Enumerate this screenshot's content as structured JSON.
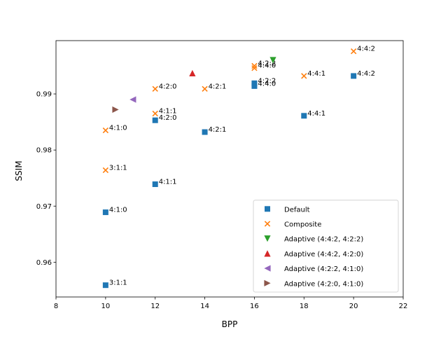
{
  "chart_data": {
    "type": "scatter",
    "title": "",
    "xlabel": "BPP",
    "ylabel": "SSIM",
    "xlim": [
      8,
      22
    ],
    "ylim": [
      0.9538,
      0.9995
    ],
    "xticks": [
      8,
      10,
      12,
      14,
      16,
      18,
      20,
      22
    ],
    "yticks": [
      0.96,
      0.97,
      0.98,
      0.99
    ],
    "xtick_labels": [
      "8",
      "10",
      "12",
      "14",
      "16",
      "18",
      "20",
      "22"
    ],
    "ytick_labels": [
      "0.96",
      "0.97",
      "0.98",
      "0.99"
    ],
    "grid": false,
    "legend_position": "lower-right",
    "series": [
      {
        "name": "Default",
        "marker": "square",
        "color": "#1f77b4",
        "points": [
          {
            "x": 10,
            "y": 0.9559,
            "label": "3:1:1"
          },
          {
            "x": 10,
            "y": 0.9689,
            "label": "4:1:0"
          },
          {
            "x": 12,
            "y": 0.9739,
            "label": "4:1:1"
          },
          {
            "x": 12,
            "y": 0.9853,
            "label": "4:2:0"
          },
          {
            "x": 14,
            "y": 0.9832,
            "label": "4:2:1"
          },
          {
            "x": 16,
            "y": 0.9919,
            "label": "4:2:2"
          },
          {
            "x": 16,
            "y": 0.9914,
            "label": "4:4:0"
          },
          {
            "x": 18,
            "y": 0.9861,
            "label": "4:4:1"
          },
          {
            "x": 20,
            "y": 0.9932,
            "label": "4:4:2"
          }
        ]
      },
      {
        "name": "Composite",
        "marker": "x",
        "color": "#ff7f0e",
        "points": [
          {
            "x": 10,
            "y": 0.9764,
            "label": "3:1:1"
          },
          {
            "x": 10,
            "y": 0.9835,
            "label": "4:1:0"
          },
          {
            "x": 12,
            "y": 0.9865,
            "label": "4:1:1"
          },
          {
            "x": 12,
            "y": 0.9909,
            "label": "4:2:0"
          },
          {
            "x": 14,
            "y": 0.9909,
            "label": "4:2:1"
          },
          {
            "x": 16,
            "y": 0.995,
            "label": "4:2:2"
          },
          {
            "x": 16,
            "y": 0.9946,
            "label": "4:4:0"
          },
          {
            "x": 18,
            "y": 0.9932,
            "label": "4:4:1"
          },
          {
            "x": 20,
            "y": 0.9976,
            "label": "4:4:2"
          }
        ]
      },
      {
        "name": "Adaptive (4:4:2, 4:2:2)",
        "marker": "triangle-down",
        "color": "#2ca02c",
        "points": [
          {
            "x": 16.75,
            "y": 0.996,
            "label": ""
          }
        ]
      },
      {
        "name": "Adaptive (4:4:2, 4:2:0)",
        "marker": "triangle-up",
        "color": "#d62728",
        "points": [
          {
            "x": 13.5,
            "y": 0.9937,
            "label": ""
          }
        ]
      },
      {
        "name": "Adaptive (4:2:2, 4:1:0)",
        "marker": "triangle-left",
        "color": "#9467bd",
        "points": [
          {
            "x": 11.1,
            "y": 0.989,
            "label": ""
          }
        ]
      },
      {
        "name": "Adaptive (4:2:0, 4:1:0)",
        "marker": "triangle-right",
        "color": "#8c564b",
        "points": [
          {
            "x": 10.4,
            "y": 0.9872,
            "label": ""
          }
        ]
      }
    ]
  }
}
